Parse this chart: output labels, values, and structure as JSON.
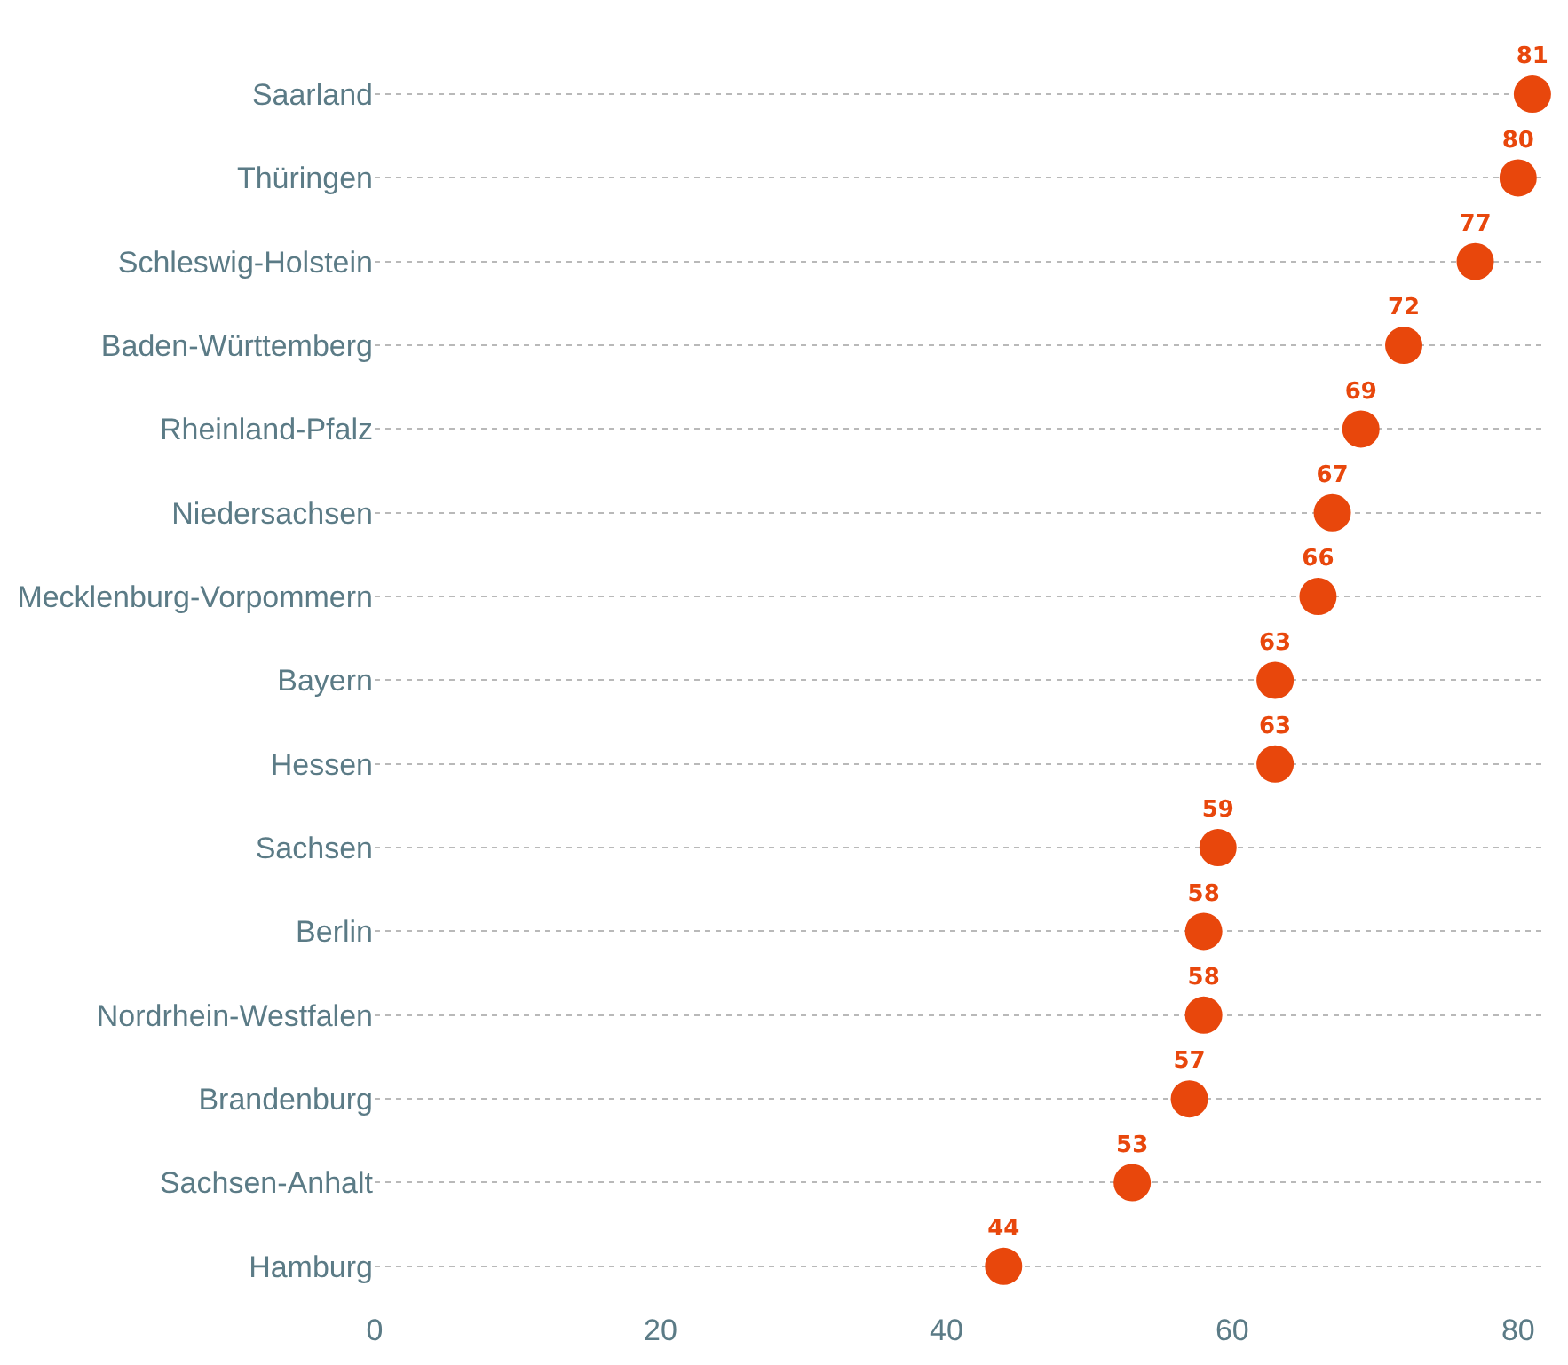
{
  "chart_data": {
    "type": "scatter",
    "orientation": "horizontal",
    "categories": [
      "Saarland",
      "Thüringen",
      "Schleswig-Holstein",
      "Baden-Württemberg",
      "Rheinland-Pfalz",
      "Niedersachsen",
      "Mecklenburg-Vorpommern",
      "Bayern",
      "Hessen",
      "Sachsen",
      "Berlin",
      "Nordrhein-Westfalen",
      "Brandenburg",
      "Sachsen-Anhalt",
      "Hamburg"
    ],
    "values": [
      81,
      80,
      77,
      72,
      69,
      67,
      66,
      63,
      63,
      59,
      58,
      58,
      57,
      53,
      44
    ],
    "color": "#e8470c",
    "data_labels": true,
    "marker": "circle",
    "grid": "y",
    "xlim": [
      0,
      82
    ],
    "xticks": [
      0,
      20,
      40,
      60,
      80
    ]
  }
}
